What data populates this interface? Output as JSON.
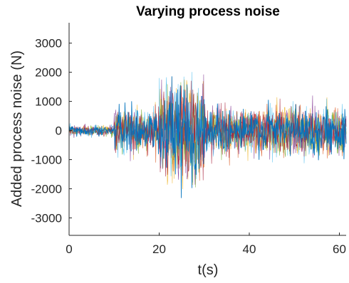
{
  "chart_data": {
    "type": "line",
    "title": "Varying process noise",
    "xlabel": "t(s)",
    "ylabel": "Added process noise (N)",
    "xlim": [
      0,
      61.5
    ],
    "ylim": [
      -3600,
      3700
    ],
    "xticks": [
      0,
      20,
      40,
      60
    ],
    "yticks": [
      -3000,
      -2000,
      -1000,
      0,
      1000,
      2000,
      3000
    ],
    "grid": false,
    "legend": "none",
    "series_colors": [
      "#0072bd",
      "#d95319",
      "#edb120",
      "#7e2f8e",
      "#77ac30",
      "#4dbeee",
      "#a2142f"
    ],
    "noise_envelope": {
      "segments": [
        {
          "t_start": 0,
          "t_end": 10,
          "amplitude": 250
        },
        {
          "t_start": 10,
          "t_end": 20,
          "amplitude": 1100
        },
        {
          "t_start": 20,
          "t_end": 30,
          "amplitude": 2900
        },
        {
          "t_start": 30,
          "t_end": 61.5,
          "amplitude": 1200
        }
      ],
      "typical_std": [
        80,
        350,
        800,
        380
      ],
      "num_series": 7
    }
  }
}
